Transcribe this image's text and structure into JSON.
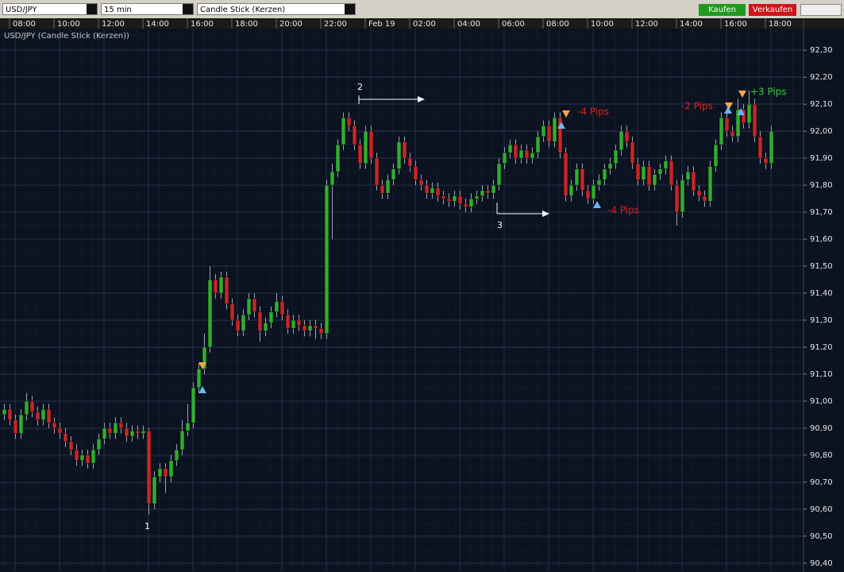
{
  "toolbar": {
    "symbol": "USD/JPY",
    "interval": "15 min",
    "chart_style": "Candle Stick (Kerzen)",
    "buy": "Kaufen",
    "sell": "Verkaufen"
  },
  "chart_data": {
    "type": "candlestick",
    "title": "USD/JPY (Candle Stick (Kerzen))",
    "colors": {
      "up": "#2fae2f",
      "down": "#c8262a",
      "wick": "#9aa3b0"
    },
    "ylim": [
      90.37,
      92.38
    ],
    "yticks": [
      {
        "value": 92.3,
        "label": "92,30"
      },
      {
        "value": 92.2,
        "label": "92,20"
      },
      {
        "value": 92.1,
        "label": "92,10"
      },
      {
        "value": 92.0,
        "label": "92,00"
      },
      {
        "value": 91.9,
        "label": "91,90"
      },
      {
        "value": 91.8,
        "label": "91,80"
      },
      {
        "value": 91.7,
        "label": "91,70"
      },
      {
        "value": 91.6,
        "label": "91,60"
      },
      {
        "value": 91.5,
        "label": "91,50"
      },
      {
        "value": 91.4,
        "label": "91,40"
      },
      {
        "value": 91.3,
        "label": "91,30"
      },
      {
        "value": 91.2,
        "label": "91,20"
      },
      {
        "value": 91.1,
        "label": "91,10"
      },
      {
        "value": 91.0,
        "label": "91,00"
      },
      {
        "value": 90.9,
        "label": "90,90"
      },
      {
        "value": 90.8,
        "label": "90,80"
      },
      {
        "value": 90.7,
        "label": "90,70"
      },
      {
        "value": 90.6,
        "label": "90,60"
      },
      {
        "value": 90.5,
        "label": "90,50"
      },
      {
        "value": 90.4,
        "label": "90,40"
      }
    ],
    "xticks": [
      {
        "value": 2,
        "label": "08:00"
      },
      {
        "value": 10,
        "label": "10:00"
      },
      {
        "value": 18,
        "label": "12:00"
      },
      {
        "value": 26,
        "label": "14:00"
      },
      {
        "value": 34,
        "label": "16:00"
      },
      {
        "value": 42,
        "label": "18:00"
      },
      {
        "value": 50,
        "label": "20:00"
      },
      {
        "value": 58,
        "label": "22:00"
      },
      {
        "value": 66,
        "label": "Feb 19"
      },
      {
        "value": 74,
        "label": "02:00"
      },
      {
        "value": 82,
        "label": "04:00"
      },
      {
        "value": 90,
        "label": "06:00"
      },
      {
        "value": 98,
        "label": "08:00"
      },
      {
        "value": 106,
        "label": "10:00"
      },
      {
        "value": 114,
        "label": "12:00"
      },
      {
        "value": 122,
        "label": "14:00"
      },
      {
        "value": 130,
        "label": "16:00"
      },
      {
        "value": 138,
        "label": "18:00"
      }
    ],
    "ohlc": [
      [
        90.95,
        90.99,
        90.93,
        90.97
      ],
      [
        90.97,
        90.99,
        90.91,
        90.93
      ],
      [
        90.93,
        90.95,
        90.86,
        90.88
      ],
      [
        90.88,
        90.97,
        90.86,
        90.95
      ],
      [
        90.95,
        91.03,
        90.93,
        91.0
      ],
      [
        91.0,
        91.02,
        90.94,
        90.96
      ],
      [
        90.96,
        90.98,
        90.91,
        90.93
      ],
      [
        90.93,
        90.99,
        90.91,
        90.97
      ],
      [
        90.97,
        90.99,
        90.9,
        90.92
      ],
      [
        90.92,
        90.94,
        90.88,
        90.9
      ],
      [
        90.9,
        90.92,
        90.86,
        90.88
      ],
      [
        90.88,
        90.9,
        90.83,
        90.85
      ],
      [
        90.85,
        90.87,
        90.8,
        90.82
      ],
      [
        90.82,
        90.84,
        90.76,
        90.78
      ],
      [
        90.78,
        90.82,
        90.76,
        90.8
      ],
      [
        90.8,
        90.82,
        90.75,
        90.77
      ],
      [
        90.77,
        90.84,
        90.75,
        90.82
      ],
      [
        90.82,
        90.88,
        90.8,
        90.86
      ],
      [
        90.86,
        90.92,
        90.84,
        90.9
      ],
      [
        90.9,
        90.92,
        90.86,
        90.88
      ],
      [
        90.88,
        90.94,
        90.86,
        90.92
      ],
      [
        90.92,
        90.94,
        90.88,
        90.9
      ],
      [
        90.9,
        90.92,
        90.85,
        90.87
      ],
      [
        90.87,
        90.91,
        90.85,
        90.89
      ],
      [
        90.89,
        90.91,
        90.86,
        90.88
      ],
      [
        90.88,
        90.91,
        90.86,
        90.89
      ],
      [
        90.89,
        90.9,
        90.58,
        90.62
      ],
      [
        90.62,
        90.74,
        90.6,
        90.72
      ],
      [
        90.72,
        90.77,
        90.7,
        90.75
      ],
      [
        90.75,
        90.77,
        90.66,
        90.72
      ],
      [
        90.72,
        90.8,
        90.7,
        90.78
      ],
      [
        90.78,
        90.84,
        90.76,
        90.82
      ],
      [
        90.82,
        90.93,
        90.8,
        90.89
      ],
      [
        90.89,
        90.99,
        90.87,
        90.92
      ],
      [
        90.92,
        91.07,
        90.9,
        91.05
      ],
      [
        91.05,
        91.14,
        91.03,
        91.12
      ],
      [
        91.12,
        91.25,
        91.1,
        91.2
      ],
      [
        91.2,
        91.5,
        91.18,
        91.45
      ],
      [
        91.45,
        91.47,
        91.38,
        91.4
      ],
      [
        91.4,
        91.48,
        91.38,
        91.46
      ],
      [
        91.46,
        91.48,
        91.34,
        91.36
      ],
      [
        91.36,
        91.38,
        91.28,
        91.3
      ],
      [
        91.3,
        91.32,
        91.24,
        91.26
      ],
      [
        91.26,
        91.34,
        91.24,
        91.32
      ],
      [
        91.32,
        91.4,
        91.3,
        91.38
      ],
      [
        91.38,
        91.4,
        91.31,
        91.33
      ],
      [
        91.33,
        91.35,
        91.22,
        91.26
      ],
      [
        91.26,
        91.31,
        91.24,
        91.29
      ],
      [
        91.29,
        91.35,
        91.27,
        91.33
      ],
      [
        91.33,
        91.4,
        91.31,
        91.37
      ],
      [
        91.37,
        91.39,
        91.3,
        91.32
      ],
      [
        91.32,
        91.34,
        91.25,
        91.27
      ],
      [
        91.27,
        91.32,
        91.25,
        91.3
      ],
      [
        91.3,
        91.32,
        91.26,
        91.28
      ],
      [
        91.28,
        91.3,
        91.24,
        91.26
      ],
      [
        91.26,
        91.3,
        91.24,
        91.28
      ],
      [
        91.28,
        91.3,
        91.23,
        91.27
      ],
      [
        91.27,
        91.29,
        91.23,
        91.25
      ],
      [
        91.25,
        91.82,
        91.23,
        91.8
      ],
      [
        91.8,
        91.88,
        91.6,
        91.85
      ],
      [
        91.85,
        91.97,
        91.83,
        91.95
      ],
      [
        91.95,
        92.07,
        91.93,
        92.05
      ],
      [
        92.05,
        92.07,
        92.0,
        92.02
      ],
      [
        92.02,
        92.04,
        91.93,
        91.95
      ],
      [
        91.95,
        91.97,
        91.86,
        91.88
      ],
      [
        91.88,
        92.02,
        91.86,
        92.0
      ],
      [
        92.0,
        92.02,
        91.88,
        91.9
      ],
      [
        91.9,
        91.92,
        91.78,
        91.8
      ],
      [
        91.8,
        91.82,
        91.75,
        91.77
      ],
      [
        91.77,
        91.84,
        91.75,
        91.82
      ],
      [
        91.82,
        91.88,
        91.8,
        91.86
      ],
      [
        91.86,
        91.98,
        91.84,
        91.96
      ],
      [
        91.96,
        91.98,
        91.88,
        91.9
      ],
      [
        91.9,
        91.92,
        91.85,
        91.87
      ],
      [
        91.87,
        91.89,
        91.8,
        91.82
      ],
      [
        91.82,
        91.84,
        91.78,
        91.8
      ],
      [
        91.8,
        91.82,
        91.75,
        91.77
      ],
      [
        91.77,
        91.81,
        91.75,
        91.79
      ],
      [
        91.79,
        91.81,
        91.74,
        91.76
      ],
      [
        91.76,
        91.78,
        91.73,
        91.75
      ],
      [
        91.75,
        91.77,
        91.72,
        91.74
      ],
      [
        91.74,
        91.78,
        91.72,
        91.76
      ],
      [
        91.76,
        91.78,
        91.71,
        91.73
      ],
      [
        91.73,
        91.75,
        91.7,
        91.72
      ],
      [
        91.72,
        91.77,
        91.7,
        91.75
      ],
      [
        91.75,
        91.78,
        91.73,
        91.76
      ],
      [
        91.76,
        91.8,
        91.74,
        91.78
      ],
      [
        91.78,
        91.8,
        91.75,
        91.77
      ],
      [
        91.77,
        91.82,
        91.75,
        91.8
      ],
      [
        91.8,
        91.9,
        91.78,
        91.88
      ],
      [
        91.88,
        91.94,
        91.86,
        91.92
      ],
      [
        91.92,
        91.97,
        91.9,
        91.95
      ],
      [
        91.95,
        91.97,
        91.88,
        91.9
      ],
      [
        91.9,
        91.95,
        91.88,
        91.93
      ],
      [
        91.93,
        91.95,
        91.88,
        91.9
      ],
      [
        91.9,
        91.94,
        91.88,
        91.92
      ],
      [
        91.92,
        92.0,
        91.9,
        91.98
      ],
      [
        91.98,
        92.04,
        91.96,
        92.02
      ],
      [
        92.02,
        92.04,
        91.94,
        91.96
      ],
      [
        91.96,
        92.07,
        91.94,
        92.05
      ],
      [
        92.05,
        92.07,
        91.9,
        91.92
      ],
      [
        91.92,
        91.94,
        91.74,
        91.76
      ],
      [
        91.76,
        91.82,
        91.74,
        91.8
      ],
      [
        91.8,
        91.88,
        91.78,
        91.86
      ],
      [
        91.86,
        91.88,
        91.76,
        91.78
      ],
      [
        91.78,
        91.8,
        91.73,
        91.75
      ],
      [
        91.75,
        91.82,
        91.73,
        91.8
      ],
      [
        91.8,
        91.84,
        91.78,
        91.82
      ],
      [
        91.82,
        91.88,
        91.8,
        91.86
      ],
      [
        91.86,
        91.9,
        91.84,
        91.88
      ],
      [
        91.88,
        91.95,
        91.86,
        91.93
      ],
      [
        91.93,
        92.02,
        91.91,
        92.0
      ],
      [
        92.0,
        92.02,
        91.94,
        91.96
      ],
      [
        91.96,
        91.98,
        91.86,
        91.88
      ],
      [
        91.88,
        91.9,
        91.8,
        91.82
      ],
      [
        91.82,
        91.89,
        91.8,
        91.87
      ],
      [
        91.87,
        91.89,
        91.78,
        91.8
      ],
      [
        91.8,
        91.86,
        91.78,
        91.84
      ],
      [
        91.84,
        91.88,
        91.82,
        91.86
      ],
      [
        91.86,
        91.91,
        91.84,
        91.89
      ],
      [
        91.89,
        91.91,
        91.78,
        91.8
      ],
      [
        91.8,
        91.82,
        91.65,
        91.7
      ],
      [
        91.7,
        91.84,
        91.68,
        91.82
      ],
      [
        91.82,
        91.87,
        91.8,
        91.85
      ],
      [
        91.85,
        91.87,
        91.76,
        91.78
      ],
      [
        91.78,
        91.8,
        91.74,
        91.76
      ],
      [
        91.76,
        91.78,
        91.72,
        91.74
      ],
      [
        91.74,
        91.89,
        91.72,
        91.87
      ],
      [
        91.87,
        91.97,
        91.85,
        91.95
      ],
      [
        91.95,
        92.07,
        91.93,
        92.05
      ],
      [
        92.05,
        92.07,
        91.98,
        92.0
      ],
      [
        92.0,
        92.02,
        91.96,
        91.98
      ],
      [
        91.98,
        92.12,
        91.96,
        92.08
      ],
      [
        92.08,
        92.1,
        92.01,
        92.03
      ],
      [
        92.03,
        92.15,
        92.01,
        92.1
      ],
      [
        92.1,
        92.12,
        91.96,
        91.98
      ],
      [
        91.98,
        92.0,
        91.88,
        91.9
      ],
      [
        91.9,
        91.92,
        91.86,
        91.88
      ],
      [
        91.88,
        92.02,
        91.86,
        92.0
      ]
    ],
    "annotations": [
      {
        "text": "1",
        "color": "#ffffff"
      },
      {
        "text": "2",
        "color": "#ffffff"
      },
      {
        "text": "3",
        "color": "#ffffff"
      },
      {
        "text": "-4 Pips",
        "color": "#e0201e"
      },
      {
        "text": "-4 Pips",
        "color": "#e0201e"
      },
      {
        "text": "-2 Pips",
        "color": "#e0201e"
      },
      {
        "text": "+3 Pips",
        "color": "#35d035"
      }
    ]
  }
}
